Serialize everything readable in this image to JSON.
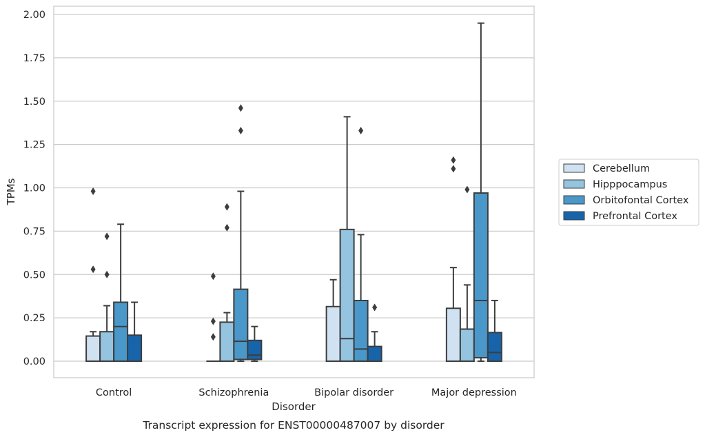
{
  "chart_data": {
    "type": "box",
    "caption": "Transcript expression for ENST00000487007 by disorder",
    "xlabel": "Disorder",
    "ylabel": "TPMs",
    "ylim": [
      -0.1,
      2.05
    ],
    "yticks": [
      "0.00",
      "0.25",
      "0.50",
      "0.75",
      "1.00",
      "1.25",
      "1.50",
      "1.75",
      "2.00"
    ],
    "grid": "horizontal",
    "legend_position": "right",
    "categories": [
      "Control",
      "Schizophrenia",
      "Bipolar disorder",
      "Major depression"
    ],
    "series": [
      {
        "name": "Cerebellum",
        "color": "#d0e1f2",
        "boxes": [
          {
            "min": 0.0,
            "q1": 0.0,
            "median": 0.0,
            "q3": 0.145,
            "max": 0.17,
            "outliers": [
              0.98,
              0.53
            ]
          },
          {
            "min": 0.0,
            "q1": 0.0,
            "median": 0.0,
            "q3": 0.0,
            "max": 0.0,
            "outliers": [
              0.49,
              0.23,
              0.14
            ]
          },
          {
            "min": 0.0,
            "q1": 0.0,
            "median": 0.0,
            "q3": 0.315,
            "max": 0.47,
            "outliers": []
          },
          {
            "min": 0.0,
            "q1": 0.0,
            "median": 0.0,
            "q3": 0.305,
            "max": 0.54,
            "outliers": [
              1.16,
              1.11
            ]
          }
        ]
      },
      {
        "name": "Hipppocampus",
        "color": "#94c4df",
        "boxes": [
          {
            "min": 0.0,
            "q1": 0.0,
            "median": 0.0,
            "q3": 0.17,
            "max": 0.32,
            "outliers": [
              0.72,
              0.5
            ]
          },
          {
            "min": 0.0,
            "q1": 0.0,
            "median": 0.0,
            "q3": 0.225,
            "max": 0.28,
            "outliers": [
              0.89,
              0.77
            ]
          },
          {
            "min": 0.0,
            "q1": 0.0,
            "median": 0.13,
            "q3": 0.76,
            "max": 1.41,
            "outliers": []
          },
          {
            "min": 0.0,
            "q1": 0.0,
            "median": 0.0,
            "q3": 0.185,
            "max": 0.44,
            "outliers": [
              0.99
            ]
          }
        ]
      },
      {
        "name": "Orbitofontal Cortex",
        "color": "#4a98c9",
        "boxes": [
          {
            "min": 0.0,
            "q1": 0.0,
            "median": 0.2,
            "q3": 0.34,
            "max": 0.79,
            "outliers": []
          },
          {
            "min": 0.0,
            "q1": 0.01,
            "median": 0.115,
            "q3": 0.415,
            "max": 0.98,
            "outliers": [
              1.46,
              1.33
            ]
          },
          {
            "min": 0.0,
            "q1": 0.0,
            "median": 0.07,
            "q3": 0.35,
            "max": 0.73,
            "outliers": [
              1.33
            ]
          },
          {
            "min": 0.0,
            "q1": 0.02,
            "median": 0.35,
            "q3": 0.97,
            "max": 1.95,
            "outliers": []
          }
        ]
      },
      {
        "name": "Prefrontal Cortex",
        "color": "#1764ab",
        "boxes": [
          {
            "min": 0.0,
            "q1": 0.0,
            "median": 0.0,
            "q3": 0.15,
            "max": 0.34,
            "outliers": []
          },
          {
            "min": 0.0,
            "q1": 0.01,
            "median": 0.035,
            "q3": 0.12,
            "max": 0.2,
            "outliers": []
          },
          {
            "min": 0.0,
            "q1": 0.0,
            "median": 0.0,
            "q3": 0.085,
            "max": 0.17,
            "outliers": [
              0.31
            ]
          },
          {
            "min": 0.0,
            "q1": 0.0,
            "median": 0.05,
            "q3": 0.165,
            "max": 0.35,
            "outliers": []
          }
        ]
      }
    ]
  }
}
